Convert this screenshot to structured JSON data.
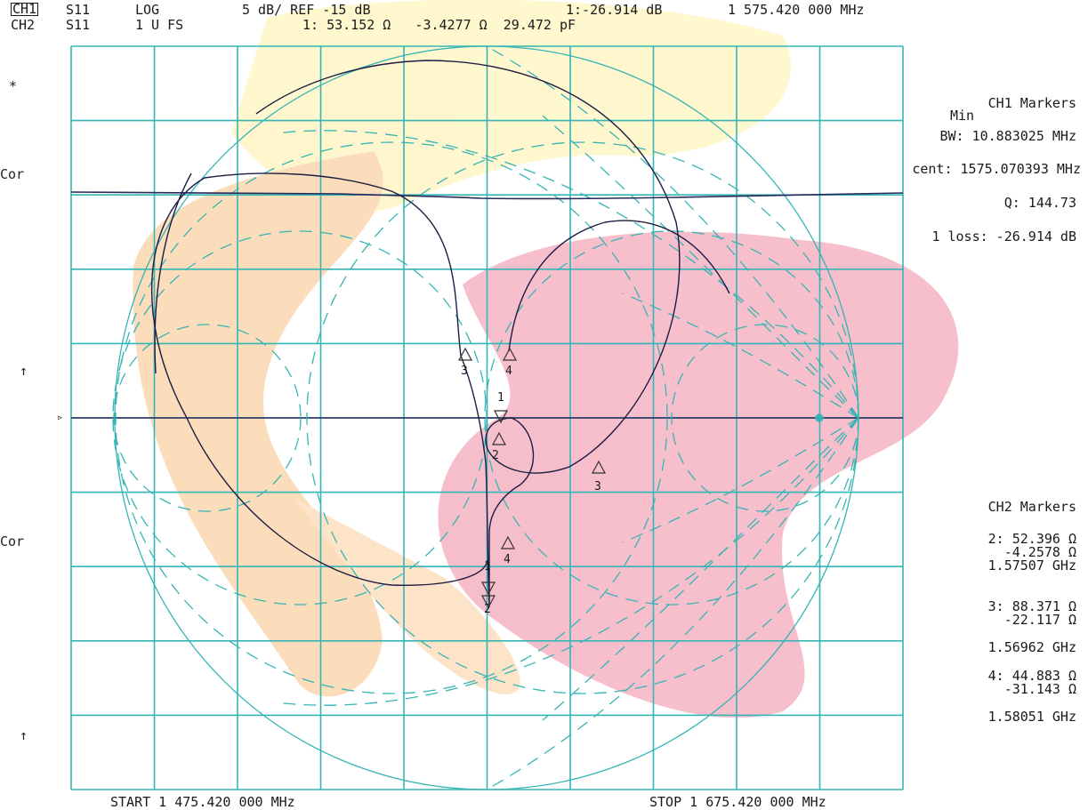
{
  "header": {
    "ch1": {
      "label": "CH1",
      "param": "S11",
      "format": "LOG",
      "scale": "5 dB/ REF -15 dB",
      "marker_value": "1:-26.914 dB",
      "marker_freq": "1 575.420 000 MHz"
    },
    "ch2": {
      "label": "CH2",
      "param": "S11",
      "format": "1 U FS",
      "marker_impedance": "1: 53.152 Ω   -3.4277 Ω  29.472 pF"
    }
  },
  "side_left": {
    "star": "*",
    "cor1": "Cor",
    "arrow1": "↑",
    "ref_marker": "▹",
    "cor2": "Cor",
    "arrow2": "↑"
  },
  "ch1_markers": {
    "title": "CH1 Markers",
    "mode": "Min",
    "bw": "BW: 10.883025 MHz",
    "cent": "cent: 1575.070393 MHz",
    "q": "Q: 144.73",
    "loss": "1 loss: -26.914 dB"
  },
  "ch2_markers": {
    "title": "CH2 Markers",
    "m2_r": "2: 52.396 Ω",
    "m2_x": "-4.2578 Ω",
    "m2_f": "1.57507 GHz",
    "m3_r": "3: 88.371 Ω",
    "m3_x": "-22.117 Ω",
    "m3_f": "1.56962 GHz",
    "m4_r": "4: 44.883 Ω",
    "m4_x": "-31.143 Ω",
    "m4_f": "1.58051 GHz"
  },
  "footer": {
    "start": "START 1 475.420 000 MHz",
    "stop": "STOP 1 675.420 000 MHz"
  },
  "trace_markers": [
    "1",
    "2",
    "3",
    "4"
  ],
  "colors": {
    "grid": "#35b5b5",
    "trace": "#1c1c44",
    "ref_line": "#2a2a5a",
    "bg_yellow": "#fff3b8",
    "bg_pink": "#f7b5c4",
    "bg_orange": "#fcd9b0"
  }
}
